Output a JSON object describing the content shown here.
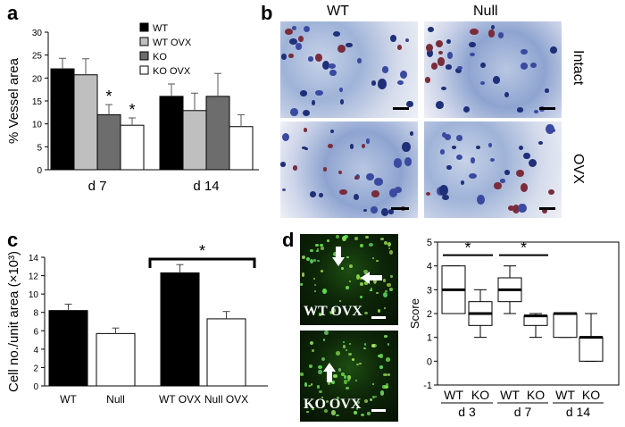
{
  "panels": {
    "a": "a",
    "b": "b",
    "c": "c",
    "d": "d"
  },
  "panel_b": {
    "col_labels": [
      "WT",
      "Null"
    ],
    "row_labels": [
      "Intact",
      "OVX"
    ]
  },
  "panel_d": {
    "image_labels": [
      "WT OVX",
      "KO OVX"
    ]
  },
  "chart_data": [
    {
      "id": "a",
      "type": "bar",
      "categories": [
        "d 7",
        "d 14"
      ],
      "ylabel": "% Vessel area",
      "ylim": [
        0,
        30
      ],
      "yticks": [
        0,
        5,
        10,
        15,
        20,
        25,
        30
      ],
      "series": [
        {
          "name": "WT",
          "color": "#000000",
          "values": [
            22,
            16
          ],
          "errors": [
            2.3,
            2.7
          ]
        },
        {
          "name": "WT OVX",
          "color": "#bfbfbf",
          "values": [
            20.7,
            12.9
          ],
          "errors": [
            3.5,
            3.8
          ]
        },
        {
          "name": "KO",
          "color": "#6d6d6d",
          "values": [
            12,
            16
          ],
          "errors": [
            2.2,
            5.0
          ]
        },
        {
          "name": "KO OVX",
          "color": "#ffffff",
          "values": [
            9.7,
            9.4
          ],
          "errors": [
            1.6,
            2.6
          ]
        }
      ],
      "annotations": [
        {
          "text": "*",
          "series": "KO",
          "category": "d 7"
        },
        {
          "text": "*",
          "series": "KO OVX",
          "category": "d 7"
        }
      ],
      "legend": "top-right"
    },
    {
      "id": "c",
      "type": "bar",
      "categories": [
        "WT",
        "Null",
        "WT OVX",
        "Null OVX"
      ],
      "values": [
        8.2,
        5.7,
        12.3,
        7.3
      ],
      "errors": [
        0.7,
        0.6,
        0.9,
        0.8
      ],
      "colors": [
        "#000000",
        "#ffffff",
        "#000000",
        "#ffffff"
      ],
      "ylabel": "Cell no./unit area (×10³)",
      "ylim": [
        0,
        14
      ],
      "yticks": [
        0,
        2,
        4,
        6,
        8,
        10,
        12,
        14
      ],
      "annotations": [
        {
          "text": "*",
          "between": [
            "WT OVX",
            "Null OVX"
          ]
        }
      ]
    },
    {
      "id": "d",
      "type": "box",
      "categories": [
        "WT",
        "KO",
        "WT",
        "KO",
        "WT",
        "KO"
      ],
      "groups": [
        "d 3",
        "d 7",
        "d 14"
      ],
      "ylabel": "Score",
      "ylim": [
        -1,
        5
      ],
      "yticks": [
        -1,
        0,
        1,
        2,
        3,
        4,
        5
      ],
      "boxes": [
        {
          "min": 2,
          "q1": 2,
          "median": 3,
          "q3": 4,
          "max": 4
        },
        {
          "min": 1,
          "q1": 1.5,
          "median": 2,
          "q3": 2.5,
          "max": 3
        },
        {
          "min": 2,
          "q1": 2.5,
          "median": 3,
          "q3": 3.5,
          "max": 4
        },
        {
          "min": 1,
          "q1": 1.5,
          "median": 1.9,
          "q3": 1.9,
          "max": 2
        },
        {
          "min": 1,
          "q1": 1,
          "median": 2,
          "q3": 2,
          "max": 2
        },
        {
          "min": 0,
          "q1": 0,
          "median": 1,
          "q3": 1,
          "max": 2
        }
      ],
      "annotations": [
        {
          "text": "*",
          "between": [
            0,
            1
          ]
        },
        {
          "text": "*",
          "between": [
            2,
            3
          ]
        }
      ]
    }
  ]
}
